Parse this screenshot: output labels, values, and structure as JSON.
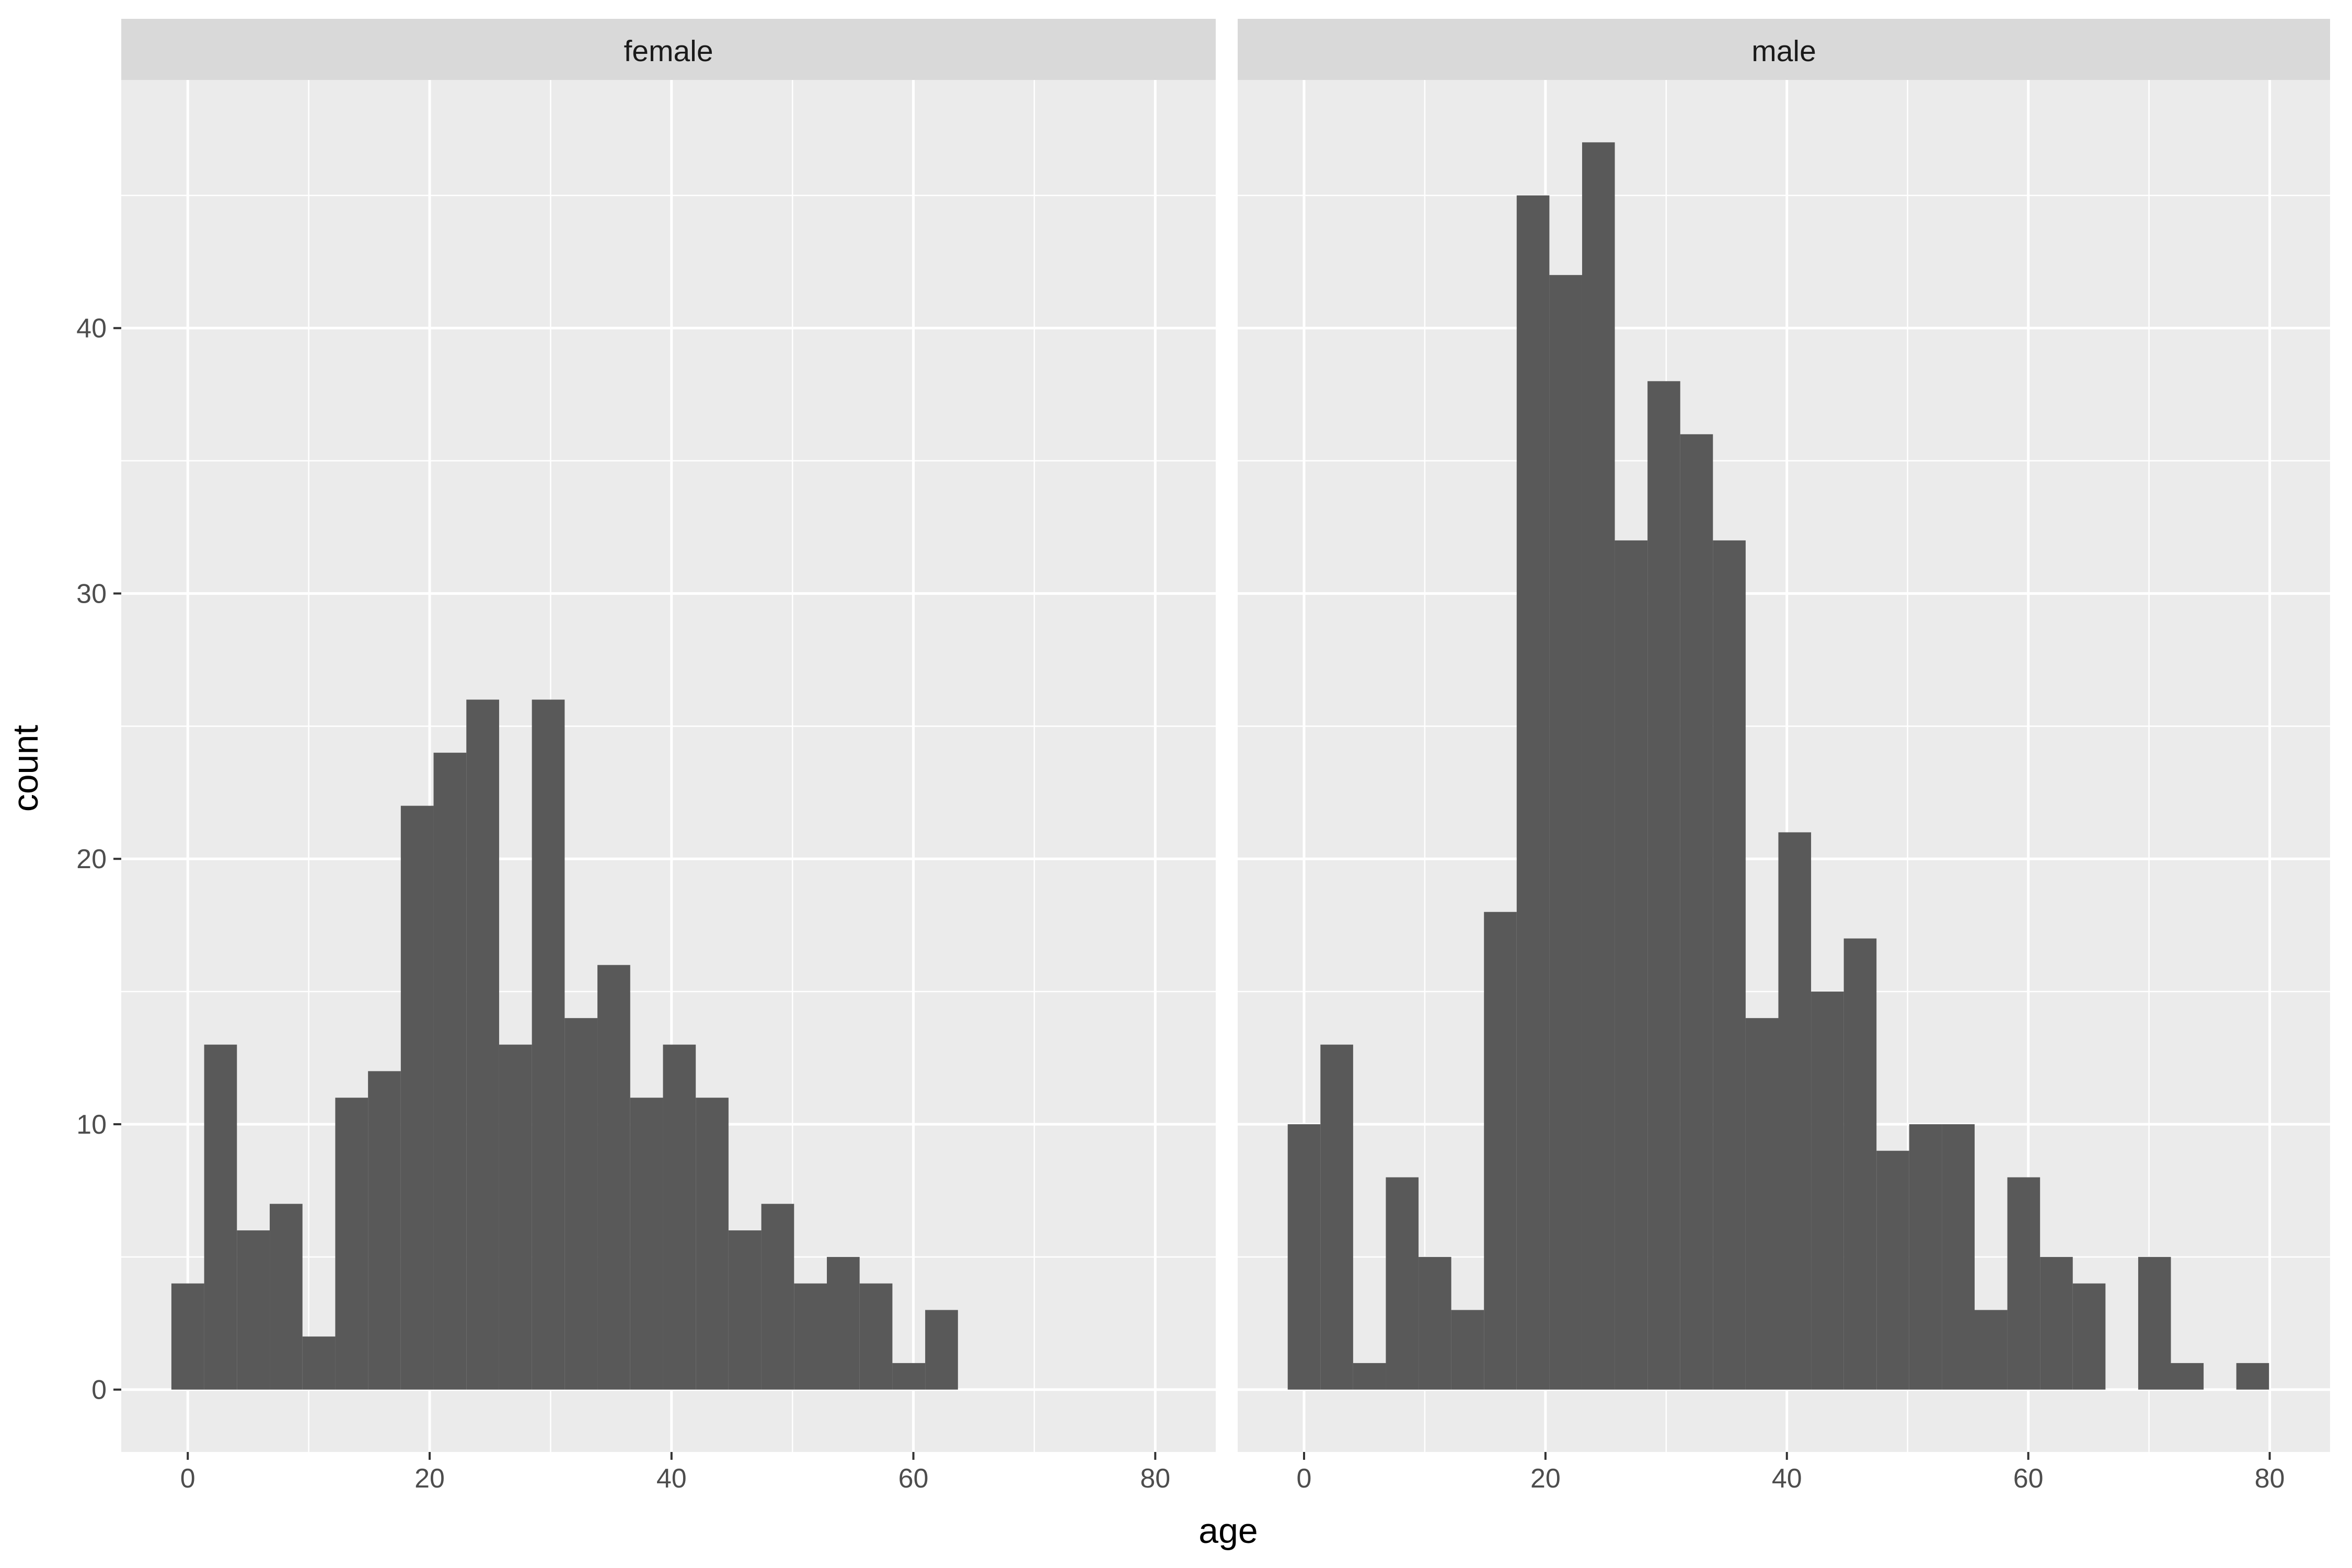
{
  "chart_data": {
    "type": "bar",
    "xlabel": "age",
    "ylabel": "count",
    "x_ticks": [
      0,
      20,
      40,
      60,
      80
    ],
    "y_ticks": [
      0,
      10,
      20,
      30,
      40
    ],
    "xlim": [
      -5.5,
      85
    ],
    "ylim": [
      -2.35,
      49.35
    ],
    "bin_width": 2.71,
    "grid": true,
    "colors": {
      "panel_background": "#EBEBEB",
      "strip_background": "#D9D9D9",
      "grid": "#FFFFFF",
      "bar_fill": "#595959"
    },
    "panels": [
      {
        "name": "female",
        "bin_centers": [
          0,
          2.71,
          5.42,
          8.13,
          10.84,
          13.55,
          16.26,
          18.97,
          21.68,
          24.39,
          27.1,
          29.81,
          32.52,
          35.23,
          37.94,
          40.65,
          43.36,
          46.07,
          48.78,
          51.49,
          54.2,
          56.91,
          59.62,
          62.33
        ],
        "counts": [
          4,
          13,
          6,
          7,
          2,
          11,
          12,
          22,
          24,
          26,
          13,
          26,
          14,
          16,
          11,
          13,
          11,
          6,
          7,
          4,
          5,
          4,
          1,
          3
        ]
      },
      {
        "name": "male",
        "bin_centers": [
          0,
          2.71,
          5.42,
          8.13,
          10.84,
          13.55,
          16.26,
          18.97,
          21.68,
          24.39,
          27.1,
          29.81,
          32.52,
          35.23,
          37.94,
          40.65,
          43.36,
          46.07,
          48.78,
          51.49,
          54.2,
          56.91,
          59.62,
          62.33,
          65.04,
          67.75,
          70.46,
          73.17,
          75.88,
          78.59
        ],
        "counts": [
          10,
          13,
          1,
          8,
          5,
          3,
          18,
          45,
          42,
          47,
          32,
          38,
          36,
          32,
          14,
          21,
          15,
          17,
          9,
          10,
          10,
          3,
          8,
          5,
          4,
          0,
          5,
          1,
          0,
          1
        ]
      }
    ]
  }
}
